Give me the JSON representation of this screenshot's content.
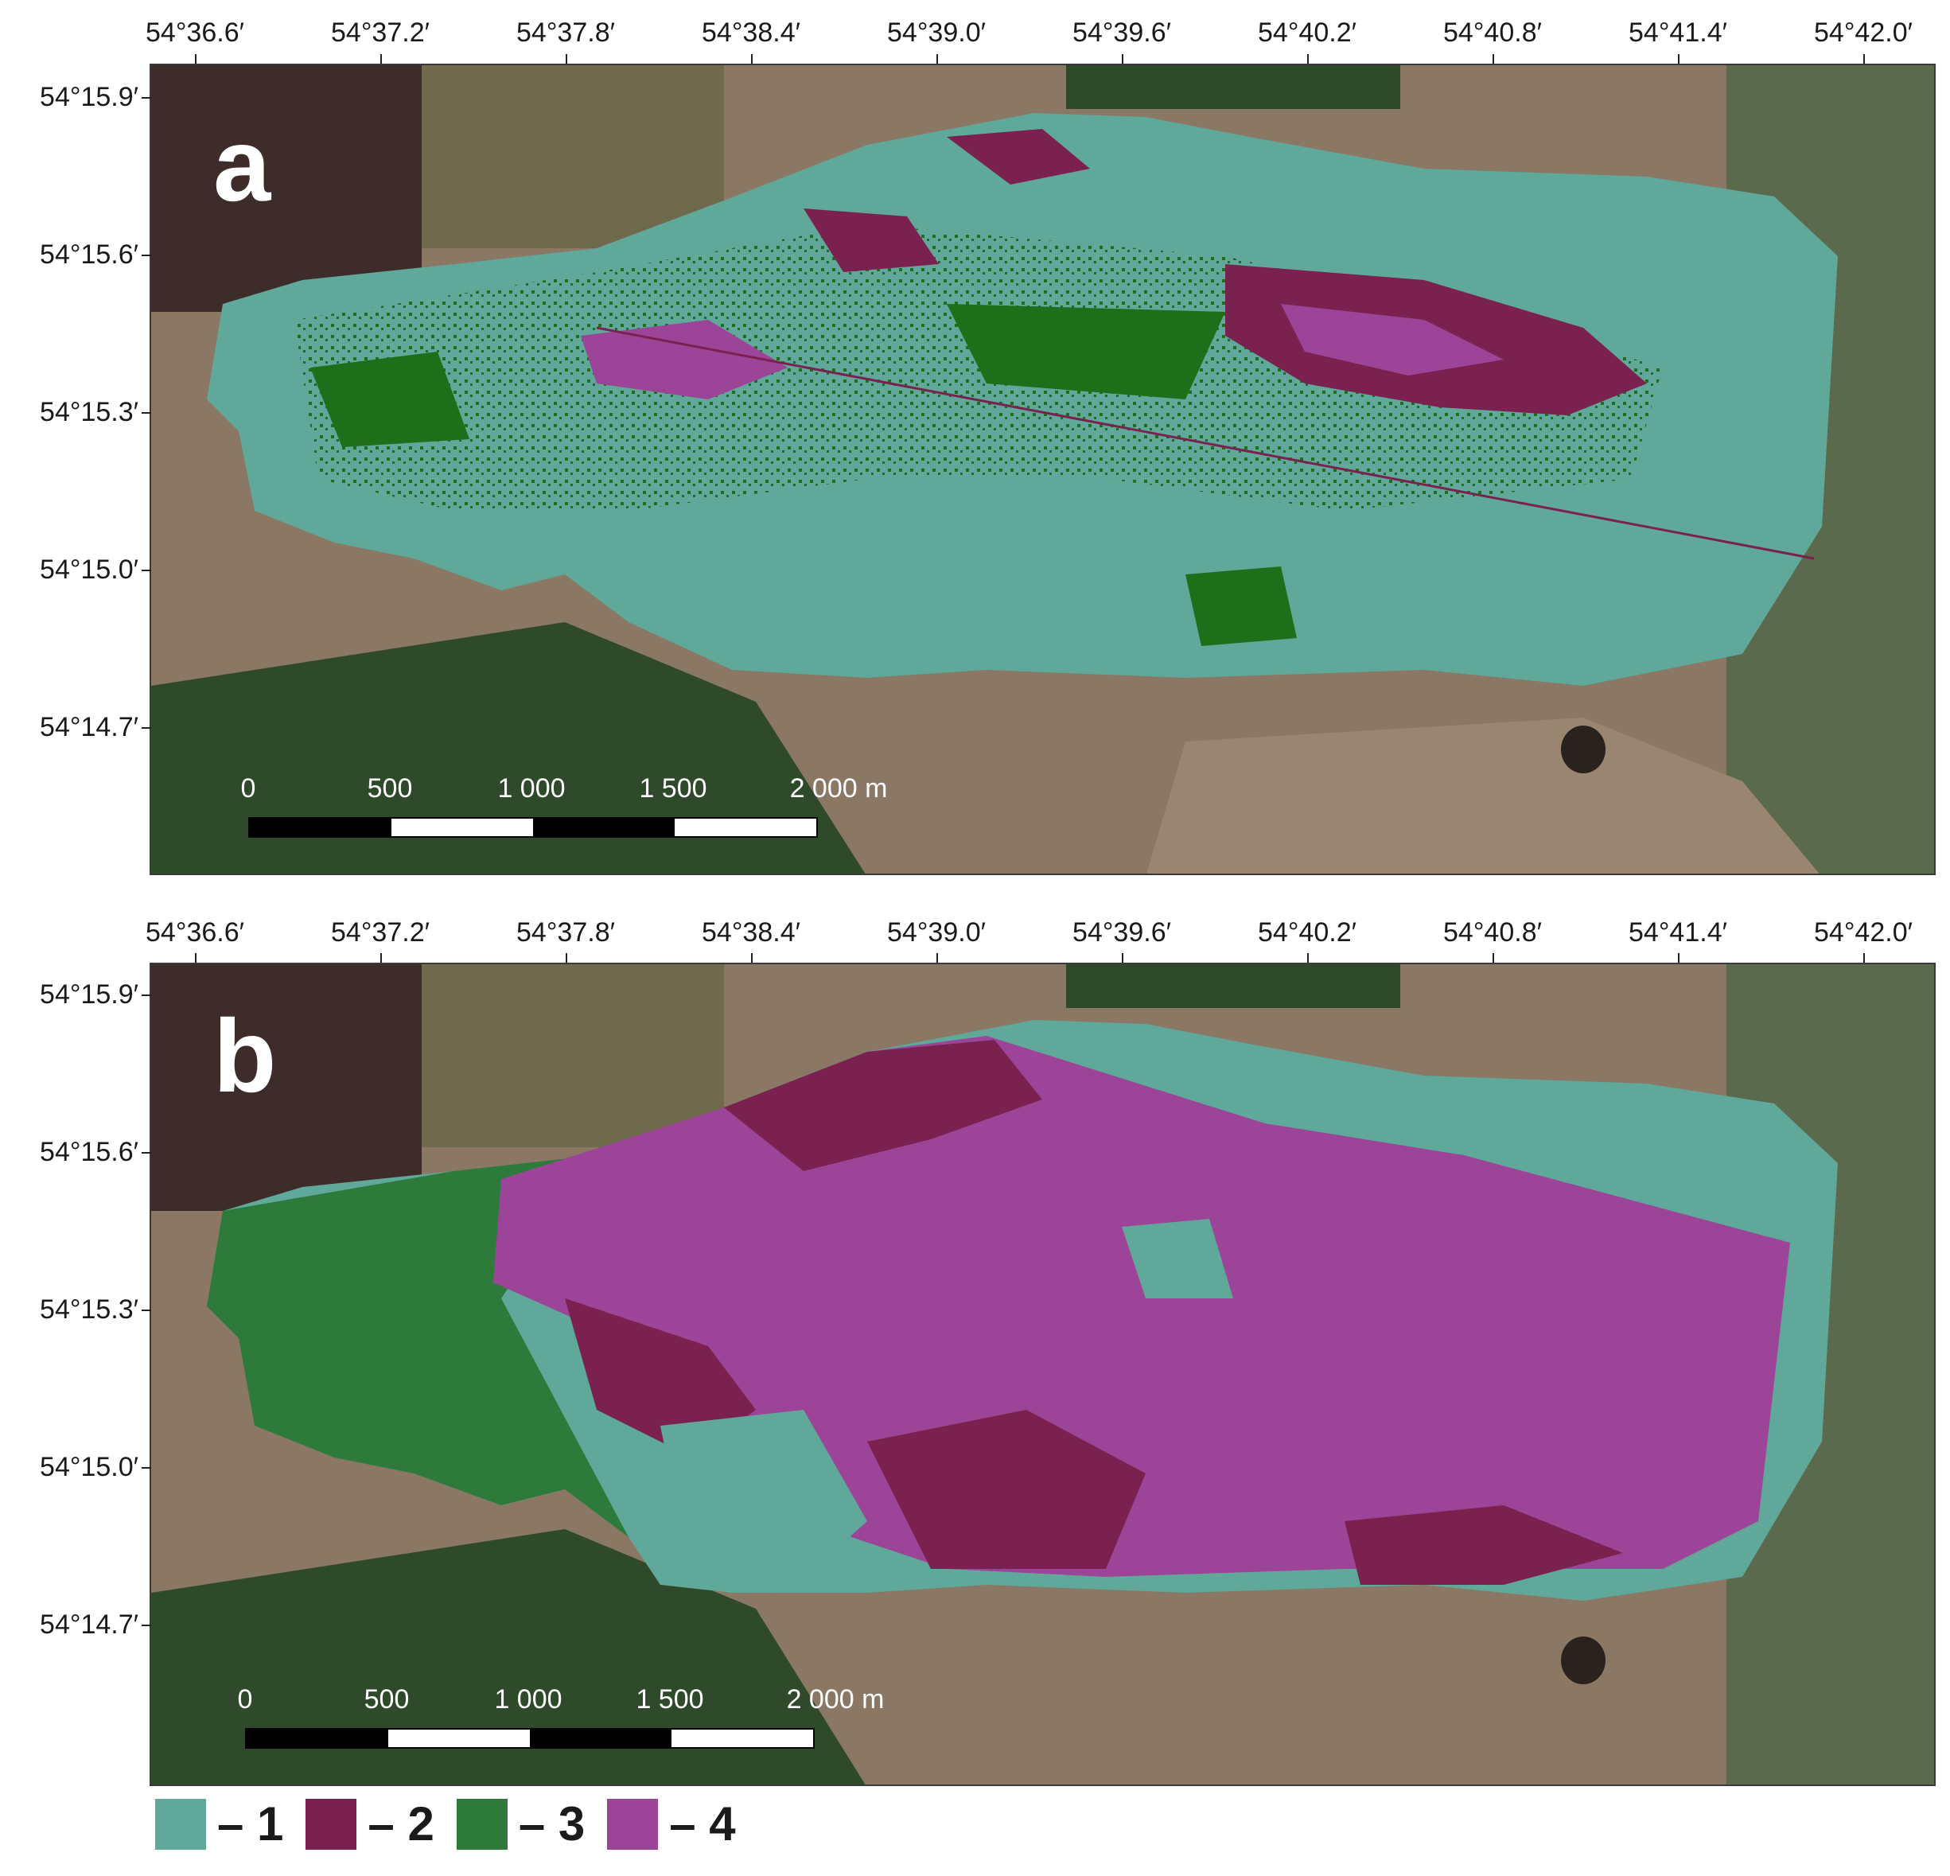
{
  "longitude_labels": [
    "54°36.6′",
    "54°37.2′",
    "54°37.8′",
    "54°38.4′",
    "54°39.0′",
    "54°39.6′",
    "54°40.2′",
    "54°40.8′",
    "54°41.4′",
    "54°42.0′"
  ],
  "latitude_labels": [
    "54°15.9′",
    "54°15.6′",
    "54°15.3′",
    "54°15.0′",
    "54°14.7′"
  ],
  "panels": [
    {
      "letter": "a"
    },
    {
      "letter": "b"
    }
  ],
  "scale_bar": {
    "labels": [
      "0",
      "500",
      "1 000",
      "1 500",
      "2 000 m"
    ],
    "segment_colors": [
      "#000000",
      "#ffffff",
      "#000000",
      "#ffffff"
    ]
  },
  "legend": [
    {
      "label": "– 1",
      "color": "#5fa89a"
    },
    {
      "label": "– 2",
      "color": "#7b2150"
    },
    {
      "label": "– 3",
      "color": "#2e7a3a"
    },
    {
      "label": "– 4",
      "color": "#9c4598"
    }
  ],
  "colors": {
    "background_terrain": "#8a7764",
    "forest": "#2f4a2a",
    "field_dark": "#3d2c2a",
    "class_1": "#5fa89a",
    "class_2": "#7b2150",
    "class_3a": "#1f6e1a",
    "class_3b": "#2e7a3a",
    "class_4": "#9c4598"
  }
}
